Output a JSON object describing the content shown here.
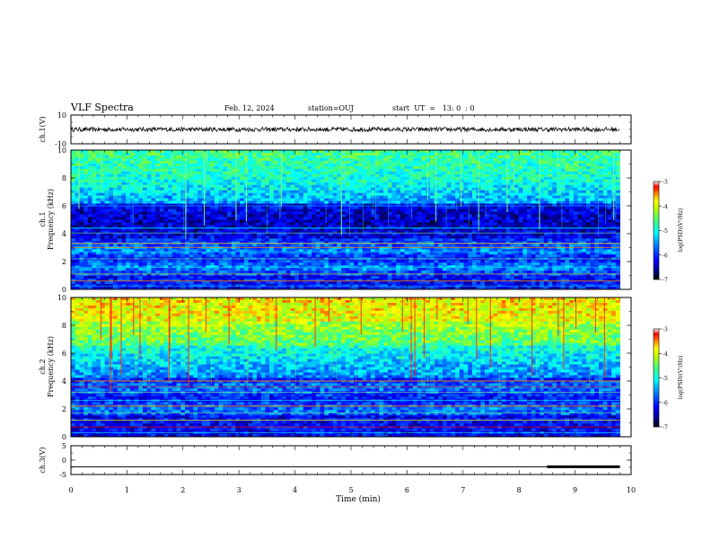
{
  "header": {
    "title": "VLF Spectra",
    "date": "Feb. 12, 2024",
    "station": "station=OUJ",
    "start_ut": "start  UT  =   13: 0  : 0"
  },
  "colors": {
    "spectrogram_scale": [
      "#000000",
      "#00007f",
      "#0000ff",
      "#007fff",
      "#00ffff",
      "#7fff7f",
      "#ffff00",
      "#ff7f00",
      "#ff0000",
      "#ffffff"
    ]
  },
  "chart_data": [
    {
      "type": "line",
      "name": "ch1-waveform",
      "ylabel": "ch.1(V)",
      "ylim": [
        -10,
        10
      ],
      "yticks": [
        "10",
        "-10"
      ],
      "xlim": [
        0,
        10
      ],
      "trace_level": 0,
      "trace_amplitude": 1.5
    },
    {
      "type": "heatmap",
      "name": "ch1-spectrogram",
      "ylabel": "ch.1\nFrequency (kHz)",
      "ylim": [
        0,
        10
      ],
      "yticks": [
        "0",
        "2",
        "4",
        "6",
        "8",
        "10"
      ],
      "xlim": [
        0,
        10
      ],
      "colorbar": {
        "label": "log(PSD)(V²/Hz)",
        "ticks": [
          "-3",
          "-4",
          "-5",
          "-6",
          "-7"
        ],
        "range": [
          -7,
          -3
        ]
      }
    },
    {
      "type": "heatmap",
      "name": "ch2-spectrogram",
      "ylabel": "ch.2\nFrequency (kHz)",
      "ylim": [
        0,
        10
      ],
      "yticks": [
        "0",
        "2",
        "4",
        "6",
        "8",
        "10"
      ],
      "xlim": [
        0,
        10
      ],
      "colorbar": {
        "label": "log(PSD)(V²/Hz)",
        "ticks": [
          "-3",
          "-4",
          "-5",
          "-6",
          "-7"
        ],
        "range": [
          -7,
          -3
        ]
      }
    },
    {
      "type": "line",
      "name": "ch3-waveform",
      "ylabel": "ch.3(V)",
      "ylim": [
        -5,
        5
      ],
      "yticks": [
        "5",
        "0",
        "-5"
      ],
      "xlim": [
        0,
        10
      ],
      "trace_level": -2.3,
      "thick_segment_x": [
        8.5,
        9.8
      ]
    }
  ],
  "xaxis": {
    "label": "Time (min)",
    "ticks": [
      "0",
      "1",
      "2",
      "3",
      "4",
      "5",
      "6",
      "7",
      "8",
      "9",
      "10"
    ],
    "data_end": 9.8
  }
}
